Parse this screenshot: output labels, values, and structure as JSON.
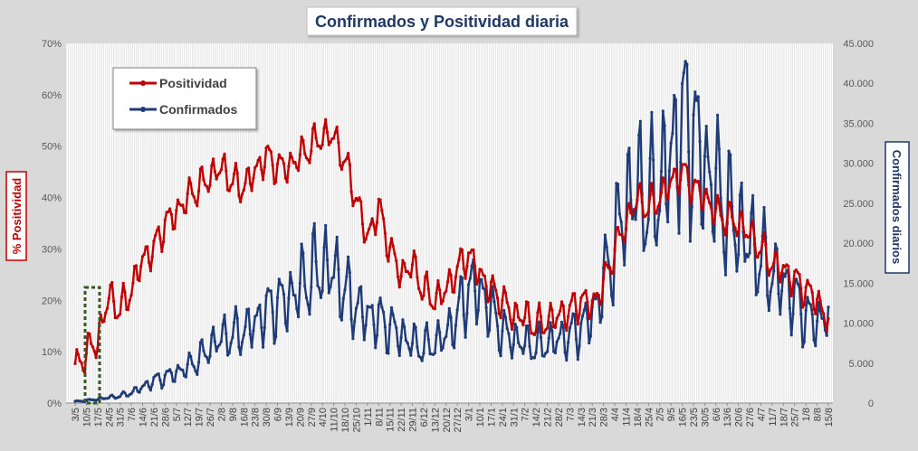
{
  "chart_data": {
    "type": "line",
    "title": "Confirmados  y Positividad  diaria",
    "ylabel_left": "% Positividad",
    "ylabel_right": "Confirmados diarios",
    "xlabel": "",
    "x_tick_labels": [
      "3/5",
      "10/5",
      "17/5",
      "24/5",
      "31/5",
      "7/6",
      "14/6",
      "21/6",
      "28/6",
      "5/7",
      "12/7",
      "19/7",
      "26/7",
      "2/8",
      "9/8",
      "16/8",
      "23/8",
      "30/8",
      "6/9",
      "13/9",
      "20/9",
      "27/9",
      "4/10",
      "11/10",
      "18/10",
      "25/10",
      "1/11",
      "8/11",
      "15/11",
      "22/11",
      "29/11",
      "6/12",
      "13/12",
      "20/12",
      "27/12",
      "3/1",
      "10/1",
      "17/1",
      "24/1",
      "31/1",
      "7/2",
      "14/2",
      "21/2",
      "28/2",
      "7/3",
      "14/3",
      "21/3",
      "28/3",
      "4/4",
      "11/4",
      "18/4",
      "25/4",
      "2/5",
      "9/5",
      "16/5",
      "23/5",
      "30/5",
      "6/6",
      "13/6",
      "20/6",
      "27/6",
      "4/7",
      "11/7",
      "18/7",
      "25/7",
      "1/8",
      "8/8",
      "15/8"
    ],
    "y_left": {
      "ticks": [
        "0%",
        "10%",
        "20%",
        "30%",
        "40%",
        "50%",
        "60%",
        "70%"
      ],
      "range": [
        0,
        70
      ],
      "unit": "%"
    },
    "y_right": {
      "ticks": [
        "0",
        "5.000",
        "10.000",
        "15.000",
        "20.000",
        "25.000",
        "30.000",
        "35.000",
        "40.000",
        "45.000"
      ],
      "range": [
        0,
        45000
      ]
    },
    "grid": "vertical",
    "legend_position": "top-left",
    "series": [
      {
        "name": "Positividad",
        "axis": "left",
        "color": "#c00000",
        "weekly_points": [
          6.5,
          10,
          12,
          21,
          18,
          22,
          28,
          30,
          35,
          37,
          40,
          42,
          44,
          46,
          43,
          42,
          45,
          48,
          46,
          46,
          48,
          50,
          52,
          52,
          47,
          40,
          32,
          38,
          30,
          25,
          27,
          22,
          20,
          22,
          26,
          29,
          25,
          22,
          20,
          17,
          17,
          15,
          16,
          17,
          18,
          20,
          19,
          23,
          30,
          35,
          40,
          38,
          40,
          43,
          45,
          42,
          40,
          37,
          36,
          35,
          33,
          30,
          27,
          26,
          24,
          22,
          20,
          16
        ]
      },
      {
        "name": "Confirmados",
        "axis": "right",
        "color": "#1f3c78",
        "weekly_points": [
          200,
          300,
          500,
          700,
          900,
          1300,
          2000,
          2800,
          3300,
          3800,
          4500,
          5500,
          7000,
          8200,
          8500,
          9000,
          10000,
          11500,
          12500,
          13000,
          14500,
          16000,
          17000,
          16500,
          14000,
          12000,
          11000,
          10500,
          9500,
          8500,
          7500,
          7000,
          7500,
          8500,
          11000,
          14500,
          14000,
          11500,
          9000,
          8000,
          7500,
          7000,
          7500,
          8000,
          8500,
          9500,
          11000,
          15000,
          20000,
          25000,
          27000,
          25000,
          27000,
          31000,
          35000,
          34000,
          29000,
          27000,
          24000,
          22000,
          20000,
          18000,
          16000,
          15000,
          13000,
          11000,
          10000,
          11500
        ]
      }
    ]
  }
}
